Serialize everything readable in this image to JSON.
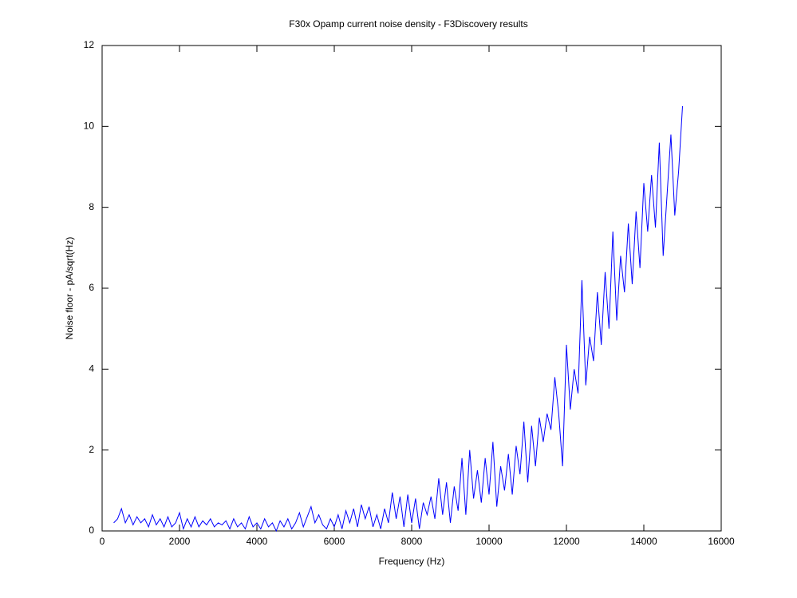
{
  "chart_data": {
    "type": "line",
    "title": "F30x Opamp current noise density - F3Discovery results",
    "x_label": "Frequency (Hz)",
    "y_label": "Noise floor - pA/sqrt(Hz)",
    "xlim": [
      0,
      16000
    ],
    "ylim": [
      0,
      12
    ],
    "xticks": [
      0,
      2000,
      4000,
      6000,
      8000,
      10000,
      12000,
      14000,
      16000
    ],
    "yticks": [
      0,
      2,
      4,
      6,
      8,
      10,
      12
    ],
    "grid": false,
    "x": [
      300,
      400,
      500,
      600,
      700,
      800,
      900,
      1000,
      1100,
      1200,
      1300,
      1400,
      1500,
      1600,
      1700,
      1800,
      1900,
      2000,
      2100,
      2200,
      2300,
      2400,
      2500,
      2600,
      2700,
      2800,
      2900,
      3000,
      3100,
      3200,
      3300,
      3400,
      3500,
      3600,
      3700,
      3800,
      3900,
      4000,
      4100,
      4200,
      4300,
      4400,
      4500,
      4600,
      4700,
      4800,
      4900,
      5000,
      5100,
      5200,
      5300,
      5400,
      5500,
      5600,
      5700,
      5800,
      5900,
      6000,
      6100,
      6200,
      6300,
      6400,
      6500,
      6600,
      6700,
      6800,
      6900,
      7000,
      7100,
      7200,
      7300,
      7400,
      7500,
      7600,
      7700,
      7800,
      7900,
      8000,
      8100,
      8200,
      8300,
      8400,
      8500,
      8600,
      8700,
      8800,
      8900,
      9000,
      9100,
      9200,
      9300,
      9400,
      9500,
      9600,
      9700,
      9800,
      9900,
      10000,
      10100,
      10200,
      10300,
      10400,
      10500,
      10600,
      10700,
      10800,
      10900,
      11000,
      11100,
      11200,
      11300,
      11400,
      11500,
      11600,
      11700,
      11800,
      11900,
      12000,
      12100,
      12200,
      12300,
      12400,
      12500,
      12600,
      12700,
      12800,
      12900,
      13000,
      13100,
      13200,
      13300,
      13400,
      13500,
      13600,
      13700,
      13800,
      13900,
      14000,
      14100,
      14200,
      14300,
      14400,
      14500,
      14600,
      14700,
      14800,
      14900,
      15000
    ],
    "series": [
      {
        "color": "#0000ff",
        "values": [
          0.2,
          0.3,
          0.55,
          0.2,
          0.4,
          0.15,
          0.35,
          0.2,
          0.3,
          0.1,
          0.4,
          0.15,
          0.3,
          0.1,
          0.35,
          0.1,
          0.2,
          0.45,
          0.05,
          0.3,
          0.1,
          0.35,
          0.1,
          0.25,
          0.15,
          0.3,
          0.1,
          0.2,
          0.15,
          0.25,
          0.05,
          0.3,
          0.1,
          0.2,
          0.05,
          0.35,
          0.1,
          0.2,
          0.05,
          0.3,
          0.1,
          0.2,
          0.0,
          0.25,
          0.1,
          0.3,
          0.05,
          0.2,
          0.45,
          0.1,
          0.35,
          0.6,
          0.2,
          0.4,
          0.15,
          0.05,
          0.3,
          0.1,
          0.4,
          0.05,
          0.5,
          0.2,
          0.55,
          0.1,
          0.65,
          0.3,
          0.6,
          0.1,
          0.4,
          0.05,
          0.55,
          0.2,
          0.95,
          0.3,
          0.85,
          0.1,
          0.9,
          0.2,
          0.8,
          0.05,
          0.7,
          0.4,
          0.85,
          0.3,
          1.3,
          0.4,
          1.2,
          0.2,
          1.1,
          0.5,
          1.8,
          0.4,
          2.0,
          0.8,
          1.5,
          0.7,
          1.8,
          0.9,
          2.2,
          0.6,
          1.6,
          1.0,
          1.9,
          0.9,
          2.1,
          1.4,
          2.7,
          1.2,
          2.6,
          1.6,
          2.8,
          2.2,
          2.9,
          2.5,
          3.8,
          2.9,
          1.6,
          4.6,
          3.0,
          4.0,
          3.4,
          6.2,
          3.6,
          4.8,
          4.2,
          5.9,
          4.6,
          6.4,
          5.0,
          7.4,
          5.2,
          6.8,
          5.9,
          7.6,
          6.1,
          7.9,
          6.5,
          8.6,
          7.4,
          8.8,
          7.5,
          9.6,
          6.8,
          8.3,
          9.8,
          7.8,
          8.9,
          10.5
        ]
      }
    ]
  }
}
